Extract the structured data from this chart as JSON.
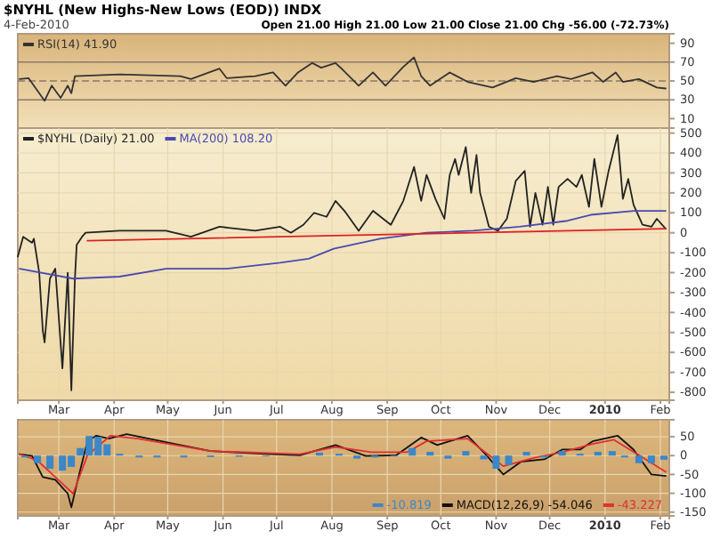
{
  "chart_data": [
    {
      "type": "line",
      "title": "$NYHL (New Highs-New Lows (EOD)) INDX",
      "subtitle": "4-Feb-2010",
      "annotations": [
        "Open 21.00  High 21.00  Low 21.00  Close 21.00  Chg -56.00 (-72.73%)"
      ],
      "xlim": [
        "2009-02-06",
        "2010-02-06"
      ],
      "ylim": [
        0,
        100
      ],
      "yticks": [
        10,
        30,
        50,
        70,
        90
      ],
      "grid": "x",
      "legend": "top left",
      "tick_labels": "y",
      "ref_lines": [
        {
          "axis": "y",
          "value": 70,
          "color": "#8a7a6a"
        },
        {
          "axis": "y",
          "value": 30,
          "color": "#8a7a6a"
        },
        {
          "axis": "y",
          "value": 50,
          "color": "#8a7a6a",
          "line_style": "dashed"
        }
      ],
      "series": [
        {
          "name": "RSI(14) 41.90",
          "color": "#333333",
          "x": [
            "2009-02-07",
            "2009-02-12",
            "2009-02-15",
            "2009-02-21",
            "2009-02-25",
            "2009-03-02",
            "2009-03-06",
            "2009-03-08",
            "2009-03-10",
            "2009-04-04",
            "2009-05-08",
            "2009-05-14",
            "2009-05-30",
            "2009-06-03",
            "2009-06-19",
            "2009-06-29",
            "2009-07-06",
            "2009-07-13",
            "2009-07-21",
            "2009-07-26",
            "2009-08-03",
            "2009-08-07",
            "2009-08-16",
            "2009-08-24",
            "2009-08-31",
            "2009-09-10",
            "2009-09-16",
            "2009-09-20",
            "2009-09-25",
            "2009-10-06",
            "2009-10-16",
            "2009-10-30",
            "2009-11-12",
            "2009-11-22",
            "2009-12-05",
            "2009-12-13",
            "2009-12-25",
            "2009-12-31",
            "2010-01-07",
            "2010-01-11",
            "2010-01-20",
            "2010-01-30",
            "2010-02-04"
          ],
          "values": [
            52,
            53,
            45,
            29,
            45,
            32,
            45,
            37,
            55,
            57,
            55,
            52,
            63,
            53,
            55,
            59,
            45,
            59,
            69,
            64,
            69,
            62,
            45,
            59,
            45,
            65,
            75,
            55,
            45,
            59,
            49,
            43,
            53,
            49,
            55,
            52,
            59,
            49,
            59,
            49,
            52,
            43,
            42
          ]
        }
      ]
    },
    {
      "type": "line",
      "xlim": [
        "2009-02-06",
        "2010-02-06"
      ],
      "ylim": [
        -840,
        525
      ],
      "yticks": [
        -800,
        -700,
        -600,
        -500,
        -400,
        -300,
        -200,
        -100,
        0,
        100,
        200,
        300,
        400,
        500
      ],
      "grid": true,
      "legend": "top left",
      "xticks": [
        {
          "value": "2009-03-01",
          "label": "Mar"
        },
        {
          "value": "2009-04-01",
          "label": "Apr"
        },
        {
          "value": "2009-05-01",
          "label": "May"
        },
        {
          "value": "2009-06-01",
          "label": "Jun"
        },
        {
          "value": "2009-07-01",
          "label": "Jul"
        },
        {
          "value": "2009-08-01",
          "label": "Aug"
        },
        {
          "value": "2009-09-01",
          "label": "Sep"
        },
        {
          "value": "2009-10-01",
          "label": "Oct"
        },
        {
          "value": "2009-11-01",
          "label": "Nov"
        },
        {
          "value": "2009-12-01",
          "label": "Dec"
        },
        {
          "value": "2010-01-01",
          "label": "2010"
        },
        {
          "value": "2010-02-01",
          "label": "Feb"
        }
      ],
      "series": [
        {
          "name": "$NYHL (Daily) 21.00",
          "color": "#222222",
          "x": [
            "2009-02-06",
            "2009-02-09",
            "2009-02-14",
            "2009-02-15",
            "2009-02-18",
            "2009-02-20",
            "2009-02-21",
            "2009-02-24",
            "2009-02-27",
            "2009-03-03",
            "2009-03-06",
            "2009-03-08",
            "2009-03-10",
            "2009-03-11",
            "2009-03-14",
            "2009-03-16",
            "2009-04-04",
            "2009-04-30",
            "2009-05-14",
            "2009-05-30",
            "2009-06-19",
            "2009-07-03",
            "2009-07-09",
            "2009-07-16",
            "2009-07-22",
            "2009-07-29",
            "2009-08-03",
            "2009-08-08",
            "2009-08-16",
            "2009-08-24",
            "2009-09-03",
            "2009-09-10",
            "2009-09-16",
            "2009-09-20",
            "2009-09-23",
            "2009-09-28",
            "2009-10-03",
            "2009-10-06",
            "2009-10-09",
            "2009-10-11",
            "2009-10-15",
            "2009-10-18",
            "2009-10-21",
            "2009-10-23",
            "2009-10-28",
            "2009-11-02",
            "2009-11-07",
            "2009-11-12",
            "2009-11-17",
            "2009-11-20",
            "2009-11-23",
            "2009-11-27",
            "2009-11-30",
            "2009-12-03",
            "2009-12-06",
            "2009-12-11",
            "2009-12-16",
            "2009-12-19",
            "2009-12-23",
            "2009-12-26",
            "2009-12-30",
            "2010-01-03",
            "2010-01-08",
            "2010-01-11",
            "2010-01-14",
            "2010-01-17",
            "2010-01-22",
            "2010-01-27",
            "2010-01-30",
            "2010-02-04"
          ],
          "values": [
            -120,
            -20,
            -50,
            -30,
            -200,
            -490,
            -550,
            -230,
            -180,
            -680,
            -200,
            -790,
            -230,
            -60,
            -20,
            0,
            10,
            10,
            -20,
            30,
            10,
            30,
            0,
            40,
            100,
            80,
            160,
            110,
            10,
            110,
            40,
            160,
            330,
            160,
            290,
            170,
            70,
            290,
            370,
            290,
            430,
            200,
            390,
            200,
            30,
            10,
            70,
            260,
            310,
            30,
            200,
            40,
            230,
            40,
            230,
            270,
            230,
            290,
            130,
            370,
            130,
            310,
            490,
            170,
            270,
            140,
            40,
            30,
            70,
            20
          ]
        },
        {
          "name": "MA(200) 108.20",
          "color": "#4a4ab0",
          "x": [
            "2009-02-07",
            "2009-03-09",
            "2009-04-04",
            "2009-04-30",
            "2009-06-03",
            "2009-07-03",
            "2009-07-19",
            "2009-08-02",
            "2009-08-28",
            "2009-09-23",
            "2009-10-19",
            "2009-11-14",
            "2009-12-11",
            "2009-12-24",
            "2010-01-17",
            "2010-02-04"
          ],
          "values": [
            -180,
            -230,
            -220,
            -180,
            -180,
            -150,
            -130,
            -80,
            -30,
            0,
            10,
            30,
            60,
            90,
            110,
            110
          ]
        },
        {
          "color": "#e02020",
          "x": [
            "2009-03-17",
            "2010-02-04"
          ],
          "values": [
            -40,
            20
          ]
        }
      ]
    },
    {
      "type": "line",
      "xlim": [
        "2009-02-06",
        "2010-02-06"
      ],
      "ylim": [
        -160,
        95
      ],
      "yticks": [
        -150,
        -100,
        -50,
        0,
        50
      ],
      "grid": true,
      "legend": "bottom right",
      "xticks": [
        {
          "value": "2009-03-01",
          "label": "Mar"
        },
        {
          "value": "2009-04-01",
          "label": "Apr"
        },
        {
          "value": "2009-05-01",
          "label": "May"
        },
        {
          "value": "2009-06-01",
          "label": "Jun"
        },
        {
          "value": "2009-07-01",
          "label": "Jul"
        },
        {
          "value": "2009-08-01",
          "label": "Aug"
        },
        {
          "value": "2009-09-01",
          "label": "Sep"
        },
        {
          "value": "2009-10-01",
          "label": "Oct"
        },
        {
          "value": "2009-11-01",
          "label": "Nov"
        },
        {
          "value": "2009-12-01",
          "label": "Dec"
        },
        {
          "value": "2010-01-01",
          "label": "2010"
        },
        {
          "value": "2010-02-01",
          "label": "Feb"
        }
      ],
      "series": [
        {
          "name": "-10.819",
          "type": "bar",
          "color": "#3b87c8",
          "x": [
            "2009-02-10",
            "2009-02-17",
            "2009-02-24",
            "2009-03-03",
            "2009-03-08",
            "2009-03-13",
            "2009-03-18",
            "2009-03-23",
            "2009-03-28",
            "2009-04-04",
            "2009-04-15",
            "2009-04-25",
            "2009-05-10",
            "2009-05-25",
            "2009-06-10",
            "2009-06-25",
            "2009-07-10",
            "2009-07-25",
            "2009-08-05",
            "2009-08-15",
            "2009-08-25",
            "2009-09-05",
            "2009-09-15",
            "2009-09-25",
            "2009-10-05",
            "2009-10-15",
            "2009-10-25",
            "2009-11-01",
            "2009-11-08",
            "2009-11-18",
            "2009-11-28",
            "2009-12-08",
            "2009-12-18",
            "2009-12-28",
            "2010-01-05",
            "2010-01-12",
            "2010-01-20",
            "2010-01-27",
            "2010-02-03"
          ],
          "values": [
            -5,
            -20,
            -35,
            -40,
            -30,
            20,
            52,
            50,
            30,
            5,
            -5,
            -5,
            -5,
            -4,
            -3,
            -2,
            -1,
            8,
            5,
            -8,
            -5,
            -2,
            20,
            10,
            -8,
            12,
            -10,
            -35,
            -25,
            10,
            -5,
            12,
            5,
            10,
            12,
            -5,
            -20,
            -20,
            -11
          ]
        },
        {
          "name": "MACD(12,26,9) -54.046",
          "color": "#111111",
          "x": [
            "2009-02-07",
            "2009-02-14",
            "2009-02-20",
            "2009-02-27",
            "2009-03-06",
            "2009-03-08",
            "2009-03-12",
            "2009-03-17",
            "2009-03-22",
            "2009-03-29",
            "2009-04-08",
            "2009-05-08",
            "2009-05-25",
            "2009-06-28",
            "2009-07-14",
            "2009-08-03",
            "2009-08-20",
            "2009-09-06",
            "2009-09-20",
            "2009-09-29",
            "2009-10-16",
            "2009-10-26",
            "2009-11-05",
            "2009-11-15",
            "2009-11-28",
            "2009-12-08",
            "2009-12-18",
            "2009-12-25",
            "2010-01-08",
            "2010-01-17",
            "2010-01-27",
            "2010-02-04"
          ],
          "values": [
            4,
            -1,
            -57,
            -64,
            -101,
            -137,
            -57,
            38,
            53,
            45,
            57,
            28,
            12,
            4,
            1,
            28,
            -1,
            1,
            48,
            28,
            53,
            4,
            -50,
            -16,
            -10,
            16,
            16,
            38,
            53,
            16,
            -50,
            -54
          ]
        },
        {
          "name": "-43.227",
          "color": "#e03030",
          "x": [
            "2009-02-07",
            "2009-02-17",
            "2009-02-27",
            "2009-03-09",
            "2009-03-17",
            "2009-03-30",
            "2009-04-14",
            "2009-05-25",
            "2009-07-14",
            "2009-08-03",
            "2009-08-23",
            "2009-09-12",
            "2009-09-23",
            "2009-10-16",
            "2009-11-05",
            "2009-11-22",
            "2009-12-08",
            "2009-12-25",
            "2010-01-06",
            "2010-01-20",
            "2010-02-04"
          ],
          "values": [
            4,
            -13,
            -57,
            -101,
            1,
            53,
            45,
            12,
            4,
            23,
            9,
            9,
            38,
            45,
            -28,
            -6,
            9,
            31,
            42,
            1,
            -43
          ]
        }
      ]
    }
  ]
}
